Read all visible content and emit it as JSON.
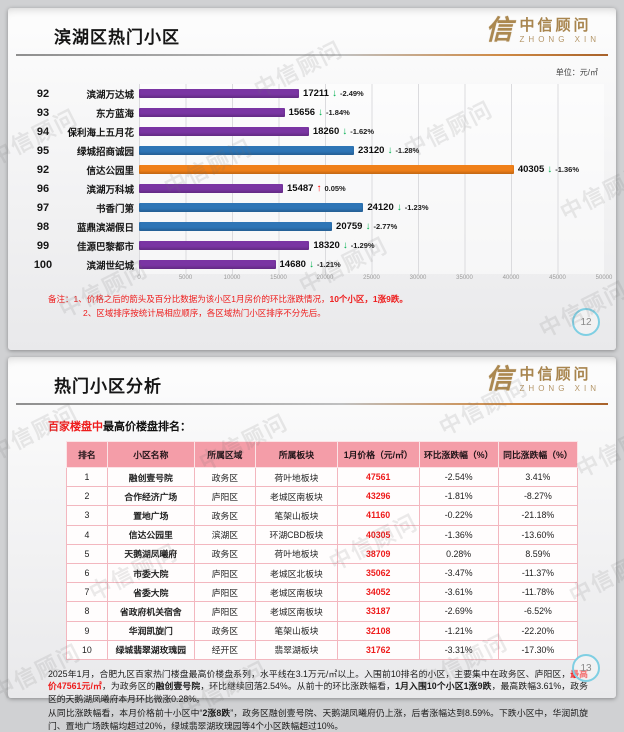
{
  "watermark": "中信顾问",
  "logo": {
    "glyph": "信",
    "brand_cn": "中信顾问",
    "brand_en": "ZHONG XIN"
  },
  "colors": {
    "red_text": "#ee1c1c",
    "table_header_bg": "#f49da8",
    "gold": "#ab8850",
    "page_ring": "#7fcfe3",
    "bar_purple": "#7a35a3",
    "bar_blue": "#2e75b6",
    "bar_orange": "#f08019",
    "arrow_down_green": "#00b050",
    "arrow_up_red": "#ff0000"
  },
  "chart_data": {
    "type": "bar",
    "orientation": "horizontal",
    "title": "滨湖区热门小区",
    "unit": "元/㎡",
    "xlim": [
      0,
      50000
    ],
    "grid": true,
    "x_ticks": [
      "0",
      "5000",
      "10000",
      "15000",
      "20000",
      "25000",
      "30000",
      "35000",
      "40000",
      "45000",
      "50000"
    ],
    "trend_colors": {
      "down": "#00b050",
      "up": "#ff0000"
    },
    "bars": [
      {
        "rank": "92",
        "name": "滨湖万达城",
        "value": 17211,
        "change": "-2.49%",
        "trend": "down",
        "color": "#7a35a3"
      },
      {
        "rank": "93",
        "name": "东方蓝海",
        "value": 15656,
        "change": "-1.84%",
        "trend": "down",
        "color": "#7a35a3"
      },
      {
        "rank": "94",
        "name": "保利海上五月花",
        "value": 18260,
        "change": "-1.62%",
        "trend": "down",
        "color": "#7a35a3"
      },
      {
        "rank": "95",
        "name": "绿城招商诚园",
        "value": 23120,
        "change": "-1.28%",
        "trend": "down",
        "color": "#2e75b6"
      },
      {
        "rank": "92",
        "name": "信达公园里",
        "value": 40305,
        "change": "-1.36%",
        "trend": "down",
        "color": "#f08019"
      },
      {
        "rank": "96",
        "name": "滨湖万科城",
        "value": 15487,
        "change": "0.05%",
        "trend": "up",
        "color": "#7a35a3"
      },
      {
        "rank": "97",
        "name": "书香门第",
        "value": 24120,
        "change": "-1.23%",
        "trend": "down",
        "color": "#2e75b6"
      },
      {
        "rank": "98",
        "name": "蓝鼎滨湖假日",
        "value": 20759,
        "change": "-2.77%",
        "trend": "down",
        "color": "#2e75b6"
      },
      {
        "rank": "99",
        "name": "佳源巴黎都市",
        "value": 18320,
        "change": "-1.29%",
        "trend": "down",
        "color": "#7a35a3"
      },
      {
        "rank": "100",
        "name": "滨湖世纪城",
        "value": 14680,
        "change": "-1.21%",
        "trend": "down",
        "color": "#7a35a3"
      }
    ]
  },
  "slide1": {
    "title": "滨湖区热门小区",
    "unit_label": "单位：元/㎡",
    "page_number": "12",
    "notes": [
      {
        "indent": false,
        "segments": [
          {
            "text": "备注：1、价格之后的箭头及百分比数据为该小区1月房价的环比涨跌情况，",
            "style": "red"
          },
          {
            "text": "10个小区，1涨9跌。",
            "style": "red-bold"
          }
        ]
      },
      {
        "indent": true,
        "segments": [
          {
            "text": "2、区域排序按统计局相应顺序，各区域热门小区排序不分先后。",
            "style": "red"
          }
        ]
      }
    ]
  },
  "slide2": {
    "title": "热门小区分析",
    "subtitle_highlight": "百家楼盘中",
    "subtitle_rest": "最高价楼盘排名：",
    "page_number": "13",
    "table": {
      "headers": [
        "排名",
        "小区名称",
        "所属区域",
        "所属板块",
        "1月价格（元/㎡）",
        "环比涨跌幅（%）",
        "同比涨跌幅（%）"
      ],
      "rows": [
        [
          "1",
          "融创壹号院",
          "政务区",
          "荷叶地板块",
          "47561",
          "-2.54%",
          "3.41%"
        ],
        [
          "2",
          "合作经济广场",
          "庐阳区",
          "老城区南板块",
          "43296",
          "-1.81%",
          "-8.27%"
        ],
        [
          "3",
          "置地广场",
          "政务区",
          "笔架山板块",
          "41160",
          "-0.22%",
          "-21.18%"
        ],
        [
          "4",
          "信达公园里",
          "滨湖区",
          "环湖CBD板块",
          "40305",
          "-1.36%",
          "-13.60%"
        ],
        [
          "5",
          "天鹅湖凤曦府",
          "政务区",
          "荷叶地板块",
          "38709",
          "0.28%",
          "8.59%"
        ],
        [
          "6",
          "市委大院",
          "庐阳区",
          "老城区北板块",
          "35062",
          "-3.47%",
          "-11.37%"
        ],
        [
          "7",
          "省委大院",
          "庐阳区",
          "老城区南板块",
          "34052",
          "-3.61%",
          "-11.78%"
        ],
        [
          "8",
          "省政府机关宿舍",
          "庐阳区",
          "老城区南板块",
          "33187",
          "-2.69%",
          "-6.52%"
        ],
        [
          "9",
          "华润凯旋门",
          "政务区",
          "笔架山板块",
          "32108",
          "-1.21%",
          "-22.20%"
        ],
        [
          "10",
          "绿城翡翠湖玫瑰园",
          "经开区",
          "翡翠湖板块",
          "31762",
          "-3.31%",
          "-17.30%"
        ]
      ]
    },
    "analysis": [
      {
        "segments": [
          {
            "text": "2025年1月，合肥九区百家热门楼盘最高价楼盘系列，水平线在3.1万元/㎡以上。入围前10排名的小区，主要集中在政务区、庐阳区，",
            "style": "normal"
          },
          {
            "text": "最高价47561元/㎡",
            "style": "red-bold"
          },
          {
            "text": "，为政务区的",
            "style": "normal"
          },
          {
            "text": "融创壹号院",
            "style": "bold"
          },
          {
            "text": "，环比继续回落2.54%。从前十的环比涨跌幅看，",
            "style": "normal"
          },
          {
            "text": "1月入围10个小区1涨9跌",
            "style": "bold"
          },
          {
            "text": "，最高跌幅3.61%，政务区的天鹅湖凤曦府本月环比微涨0.28%。",
            "style": "normal"
          }
        ]
      },
      {
        "segments": [
          {
            "text": "从同比涨跌幅看，本月价格前十小区中“",
            "style": "normal"
          },
          {
            "text": "2涨8跌",
            "style": "bold"
          },
          {
            "text": "”，政务区融创壹号院、天鹅湖凤曦府仍上涨，后者涨幅达到8.59%。下跌小区中，华润凯旋门、置地广场跌幅均超过20%，绿城翡翠湖玫瑰园等4个小区跌幅超过10%。",
            "style": "normal"
          }
        ]
      }
    ]
  }
}
